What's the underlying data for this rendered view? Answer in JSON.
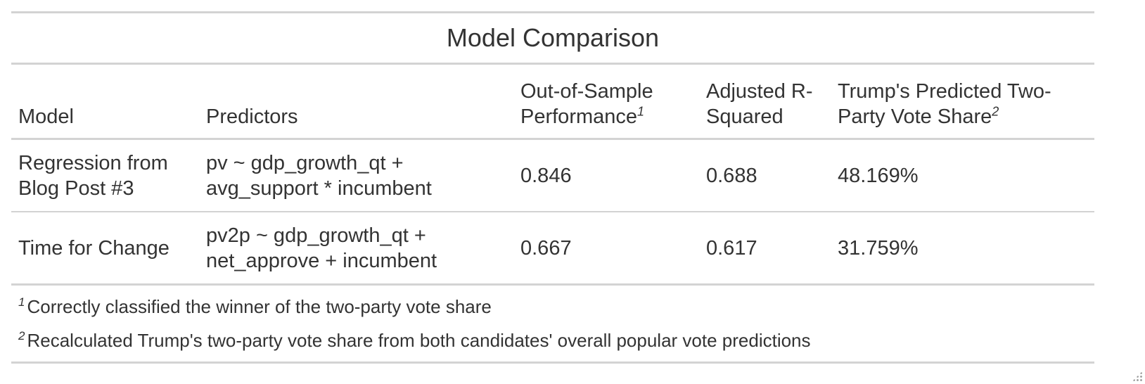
{
  "table": {
    "title": "Model Comparison",
    "columns": [
      {
        "label": "Model",
        "footnote": ""
      },
      {
        "label": "Predictors",
        "footnote": ""
      },
      {
        "label": "Out-of-Sample Performance",
        "footnote": "1"
      },
      {
        "label": "Adjusted R-Squared",
        "footnote": ""
      },
      {
        "label": "Trump's Predicted Two-Party Vote Share",
        "footnote": "2"
      }
    ],
    "rows": [
      {
        "model": "Regression from Blog Post #3",
        "predictors": "pv ~ gdp_growth_qt + avg_support * incumbent",
        "out_of_sample": "0.846",
        "adj_r_squared": "0.688",
        "predicted_share": "48.169%"
      },
      {
        "model": "Time for Change",
        "predictors": "pv2p ~ gdp_growth_qt + net_approve + incumbent",
        "out_of_sample": "0.667",
        "adj_r_squared": "0.617",
        "predicted_share": "31.759%"
      }
    ],
    "footnotes": [
      {
        "mark": "1",
        "text": "Correctly classified the winner of the two-party vote share"
      },
      {
        "mark": "2",
        "text": "Recalculated Trump's two-party vote share from both candidates' overall popular vote predictions"
      }
    ]
  }
}
